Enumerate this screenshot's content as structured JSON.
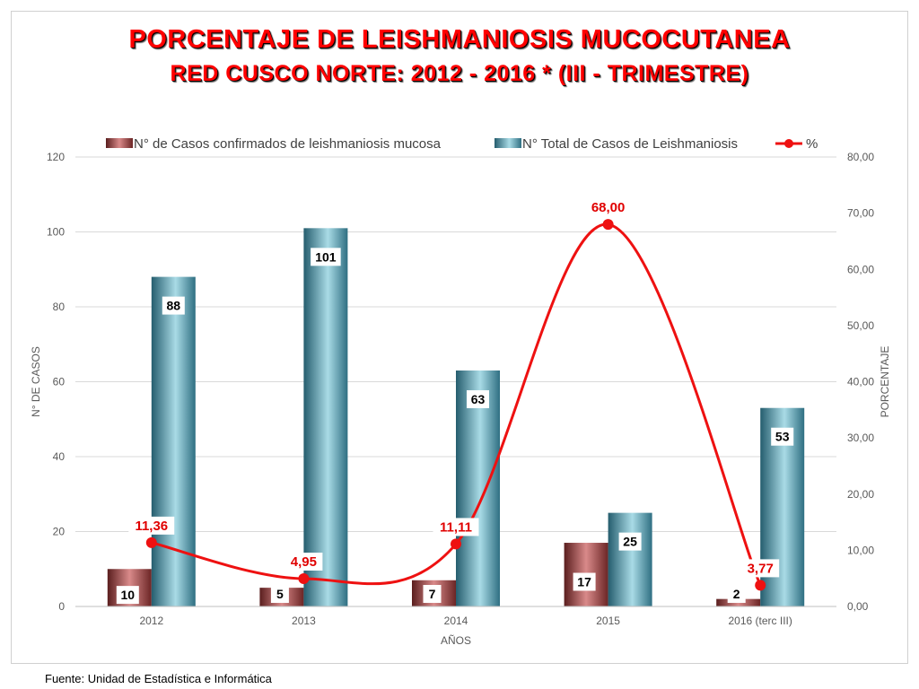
{
  "title_line1": "PORCENTAJE DE LEISHMANIOSIS MUCOCUTANEA",
  "title_line2": "RED CUSCO NORTE: 2012 - 2016 * (III - TRIMESTRE)",
  "source": "Fuente: Unidad de Estadística e Informática",
  "colors": {
    "mucosa_bar": "#8b3a3a",
    "total_bar": "#3f8fa6",
    "percent_line": "#ee1111"
  },
  "chart_data": {
    "type": "bar",
    "categories": [
      "2012",
      "2013",
      "2014",
      "2015",
      "2016 (terc III)"
    ],
    "xlabel": "AÑOS",
    "ylabel": "N° DE CASOS",
    "y2label": "PORCENTAJE",
    "ylim": [
      0,
      120
    ],
    "yticks": [
      "0",
      "20",
      "40",
      "60",
      "80",
      "100",
      "120"
    ],
    "y2lim": [
      0,
      80
    ],
    "y2ticks": [
      "0,00",
      "10,00",
      "20,00",
      "30,00",
      "40,00",
      "50,00",
      "60,00",
      "70,00",
      "80,00"
    ],
    "grid": true,
    "legend_position": "top",
    "series": [
      {
        "name": "N° de Casos confirmados de leishmaniosis mucosa",
        "kind": "bar",
        "axis": "left",
        "values": [
          10,
          5,
          7,
          17,
          2
        ],
        "labels": [
          "10",
          "5",
          "7",
          "17",
          "2"
        ]
      },
      {
        "name": "N° Total de Casos de Leishmaniosis",
        "kind": "bar",
        "axis": "left",
        "values": [
          88,
          101,
          63,
          25,
          53
        ],
        "labels": [
          "88",
          "101",
          "63",
          "25",
          "53"
        ]
      },
      {
        "name": "%",
        "kind": "line",
        "axis": "right",
        "smooth": true,
        "values": [
          11.36,
          4.95,
          11.11,
          68.0,
          3.77
        ],
        "labels": [
          "11,36",
          "4,95",
          "11,11",
          "68,00",
          "3,77"
        ]
      }
    ]
  }
}
